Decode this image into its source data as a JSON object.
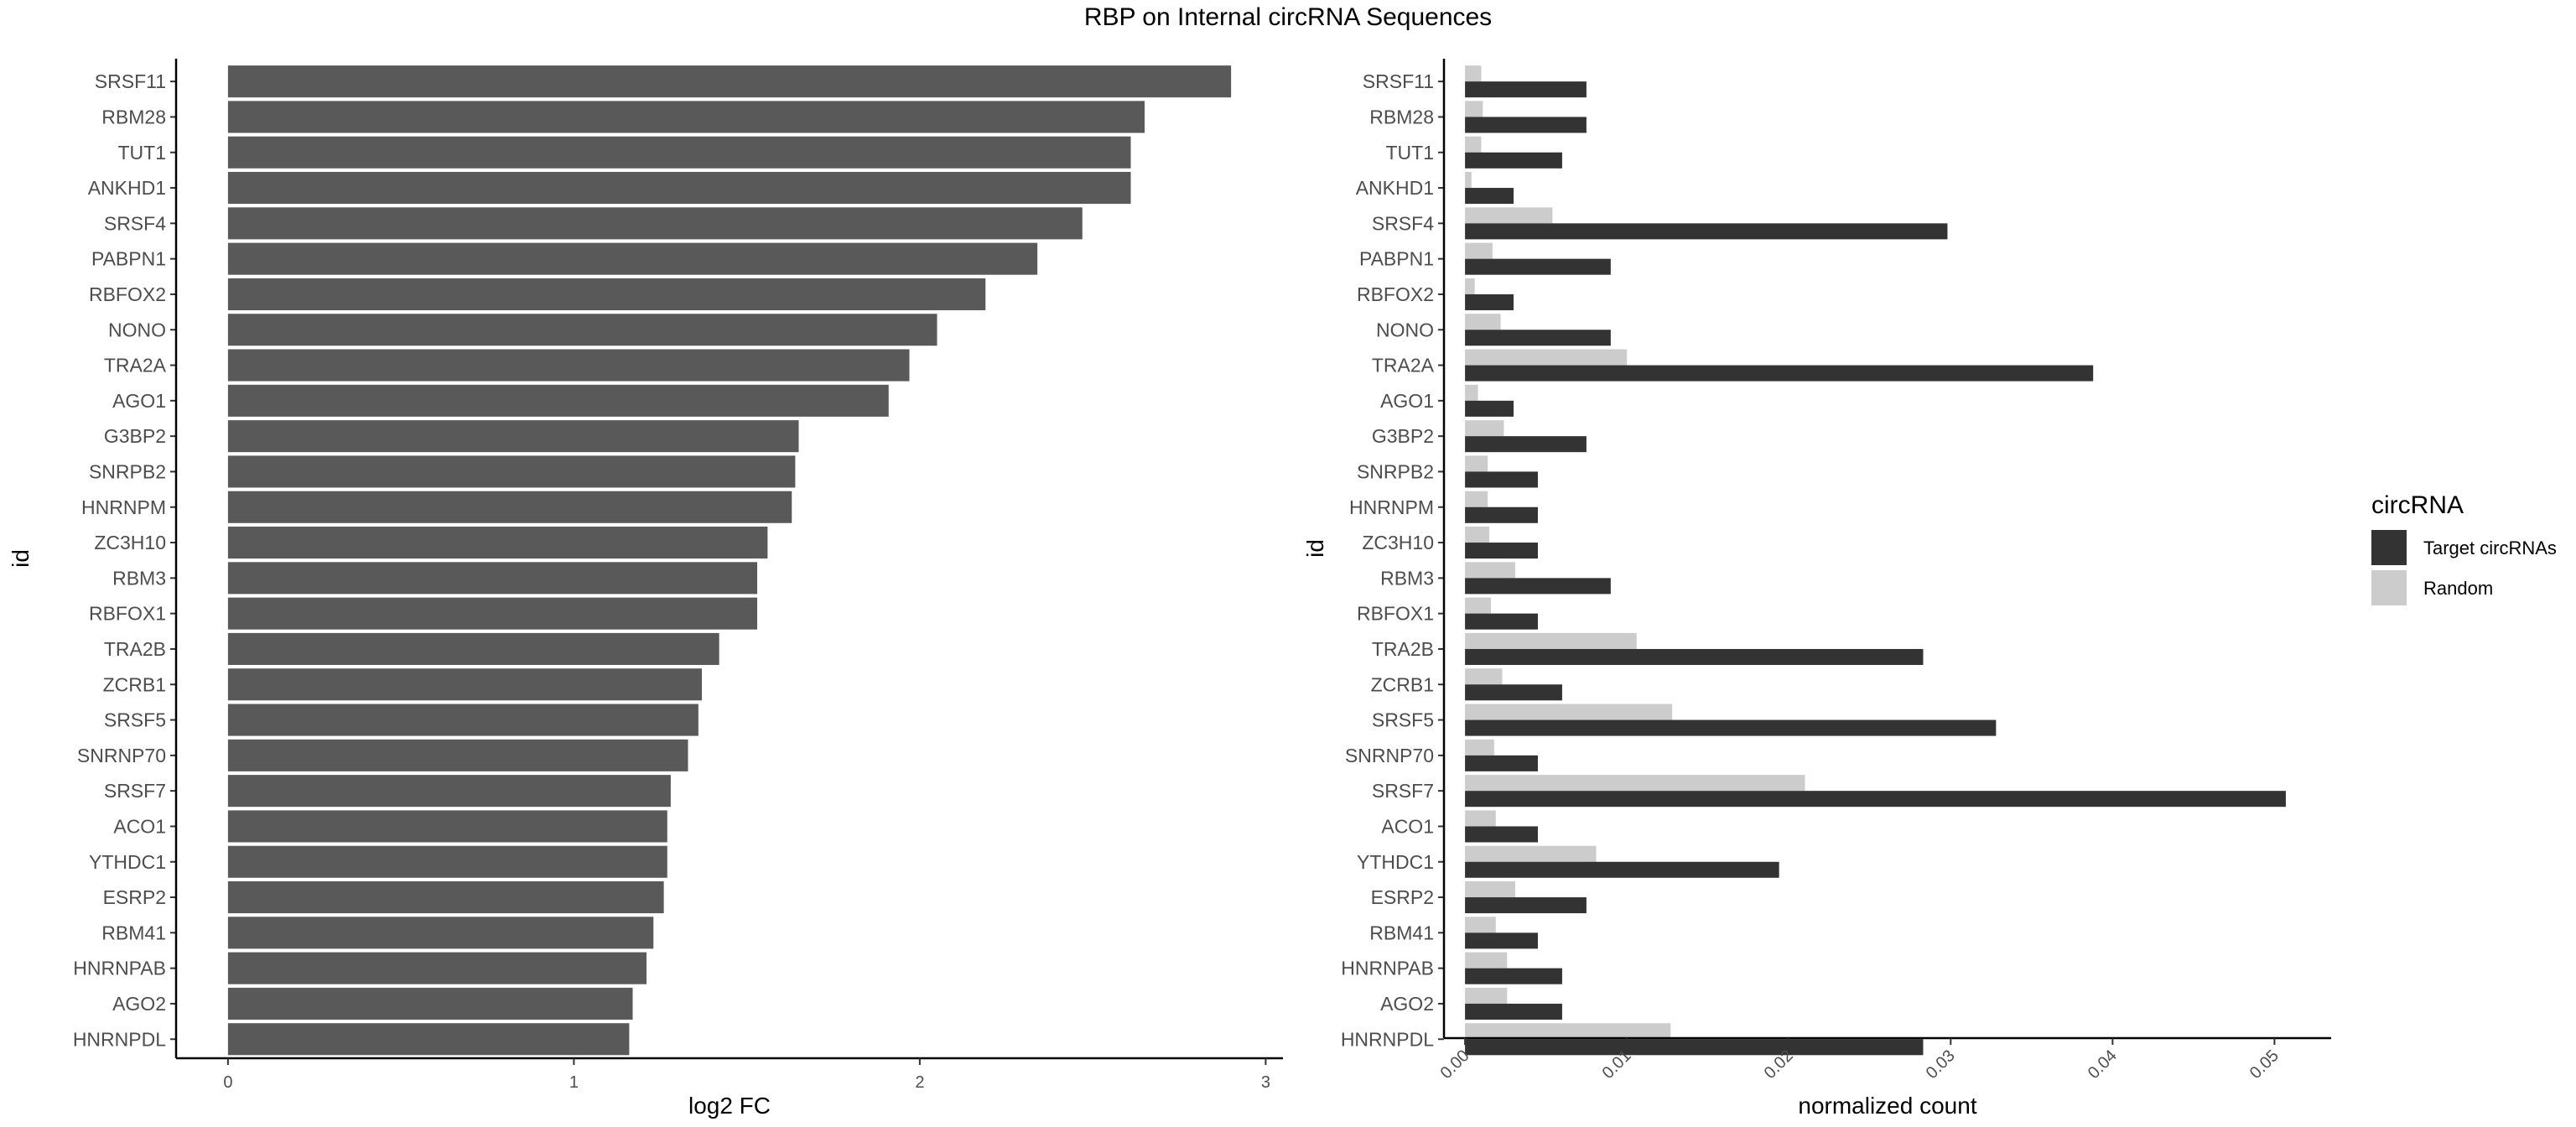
{
  "title": "RBP on Internal circRNA Sequences",
  "chart_data": [
    {
      "type": "bar",
      "orientation": "horizontal",
      "xlabel": "log2 FC",
      "ylabel": "id",
      "xlim": [
        -0.15,
        3.05
      ],
      "xticks": [
        0,
        1,
        2,
        3
      ],
      "grid": false,
      "color": "#595959",
      "categories": [
        "SRSF11",
        "RBM28",
        "TUT1",
        "ANKHD1",
        "SRSF4",
        "PABPN1",
        "RBFOX2",
        "NONO",
        "TRA2A",
        "AGO1",
        "G3BP2",
        "SNRPB2",
        "HNRNPM",
        "ZC3H10",
        "RBM3",
        "RBFOX1",
        "TRA2B",
        "ZCRB1",
        "SRSF5",
        "SNRNP70",
        "SRSF7",
        "ACO1",
        "YTHDC1",
        "ESRP2",
        "RBM41",
        "HNRNPAB",
        "AGO2",
        "HNRNPDL"
      ],
      "values": [
        2.9,
        2.65,
        2.61,
        2.61,
        2.47,
        2.34,
        2.19,
        2.05,
        1.97,
        1.91,
        1.65,
        1.64,
        1.63,
        1.56,
        1.53,
        1.53,
        1.42,
        1.37,
        1.36,
        1.33,
        1.28,
        1.27,
        1.27,
        1.26,
        1.23,
        1.21,
        1.17,
        1.16
      ]
    },
    {
      "type": "bar",
      "orientation": "horizontal",
      "xlabel": "normalized count",
      "ylabel": "id",
      "xlim": [
        -0.0013,
        0.0535
      ],
      "xticks": [
        0.0,
        0.01,
        0.02,
        0.03,
        0.04,
        0.05
      ],
      "xtick_labels": [
        "0.00",
        "0.01",
        "0.02",
        "0.03",
        "0.04",
        "0.05"
      ],
      "grid": false,
      "legend": {
        "title": "circRNA",
        "position": "right"
      },
      "categories": [
        "SRSF11",
        "RBM28",
        "TUT1",
        "ANKHD1",
        "SRSF4",
        "PABPN1",
        "RBFOX2",
        "NONO",
        "TRA2A",
        "AGO1",
        "G3BP2",
        "SNRPB2",
        "HNRNPM",
        "ZC3H10",
        "RBM3",
        "RBFOX1",
        "TRA2B",
        "ZCRB1",
        "SRSF5",
        "SNRNP70",
        "SRSF7",
        "ACO1",
        "YTHDC1",
        "ESRP2",
        "RBM41",
        "HNRNPAB",
        "AGO2",
        "HNRNPDL"
      ],
      "series": [
        {
          "name": "Target circRNAs",
          "color": "#333333",
          "values": [
            0.0075,
            0.0075,
            0.006,
            0.003,
            0.0298,
            0.009,
            0.003,
            0.009,
            0.0388,
            0.003,
            0.0075,
            0.0045,
            0.0045,
            0.0045,
            0.009,
            0.0045,
            0.0283,
            0.006,
            0.0328,
            0.0045,
            0.0507,
            0.0045,
            0.0194,
            0.0075,
            0.0045,
            0.006,
            0.006,
            0.0283
          ]
        },
        {
          "name": "Random",
          "color": "#cccccc",
          "values": [
            0.001,
            0.0011,
            0.001,
            0.0004,
            0.0054,
            0.0017,
            0.0006,
            0.0022,
            0.01,
            0.0008,
            0.0024,
            0.0014,
            0.0014,
            0.0015,
            0.0031,
            0.0016,
            0.0106,
            0.0023,
            0.0128,
            0.0018,
            0.021,
            0.0019,
            0.0081,
            0.0031,
            0.0019,
            0.0026,
            0.0026,
            0.0127
          ]
        }
      ]
    }
  ]
}
